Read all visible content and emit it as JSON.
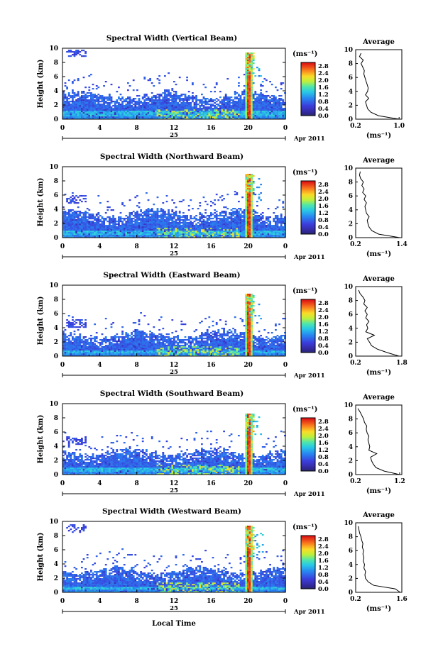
{
  "chart_data": [
    {
      "type": "heatmap",
      "title": "Spectral Width (Vertical Beam)",
      "ylabel": "Height (km)",
      "x_ticks": [
        "0",
        "4",
        "8",
        "12",
        "16",
        "20",
        "0"
      ],
      "y_ticks": [
        "0",
        "2",
        "4",
        "6",
        "8",
        "10"
      ],
      "date_label": "25",
      "month_label": "Apr 2011",
      "colorbar": {
        "unit": "(ms⁻¹)",
        "ticks": [
          "0.0",
          "0.4",
          "0.8",
          "1.2",
          "1.6",
          "2.0",
          "2.4",
          "2.8"
        ],
        "range": [
          0,
          3.0
        ]
      },
      "cloud": {
        "top_base_km": 3.5,
        "bright_base_km": 1.3,
        "spike_hour": 20,
        "spike_top_km": 9.5,
        "upper_patch_km": 9.6
      },
      "average": {
        "title": "Average",
        "xlabel": "(ms⁻¹)",
        "x_ticks": [
          "0.2",
          "1.0"
        ],
        "xlim": [
          0.2,
          1.05
        ],
        "y": [
          0,
          0.5,
          1,
          1.5,
          2,
          2.5,
          3,
          3.5,
          4,
          4.5,
          5,
          5.5,
          6,
          6.5,
          7,
          7.5,
          8,
          8.5,
          9,
          9.5
        ],
        "x": [
          1.0,
          0.62,
          0.48,
          0.42,
          0.4,
          0.38,
          0.44,
          0.38,
          0.42,
          0.43,
          0.41,
          0.39,
          0.37,
          0.35,
          0.36,
          0.33,
          0.3,
          0.34,
          0.27,
          0.3
        ]
      }
    },
    {
      "type": "heatmap",
      "title": "Spectral Width (Northward Beam)",
      "ylabel": "Height (km)",
      "x_ticks": [
        "0",
        "4",
        "8",
        "12",
        "16",
        "20",
        "0"
      ],
      "y_ticks": [
        "0",
        "2",
        "4",
        "6",
        "8",
        "10"
      ],
      "date_label": "25",
      "month_label": "Apr 2011",
      "colorbar": {
        "unit": "(ms⁻¹)",
        "ticks": [
          "0.0",
          "0.4",
          "0.8",
          "1.2",
          "1.6",
          "2.0",
          "2.4",
          "2.8"
        ],
        "range": [
          0,
          3.0
        ]
      },
      "cloud": {
        "top_base_km": 3.6,
        "bright_base_km": 1.2,
        "spike_hour": 20,
        "spike_top_km": 9.2,
        "upper_patch_km": 5.5
      },
      "average": {
        "title": "Average",
        "xlabel": "(ms⁻¹)",
        "x_ticks": [
          "0.2",
          "1.4"
        ],
        "xlim": [
          0.2,
          1.4
        ],
        "y": [
          0,
          0.5,
          1,
          1.5,
          2,
          2.5,
          3,
          3.5,
          4,
          4.5,
          5,
          5.5,
          6,
          6.5,
          7,
          7.5,
          8,
          8.5,
          9,
          9.5
        ],
        "x": [
          1.35,
          0.8,
          0.62,
          0.55,
          0.52,
          0.5,
          0.55,
          0.48,
          0.46,
          0.44,
          0.48,
          0.42,
          0.46,
          0.38,
          0.42,
          0.36,
          0.4,
          0.33,
          0.3,
          0.32
        ]
      }
    },
    {
      "type": "heatmap",
      "title": "Spectral Width (Eastward Beam)",
      "ylabel": "Height (km)",
      "x_ticks": [
        "0",
        "4",
        "8",
        "12",
        "16",
        "20",
        "0"
      ],
      "y_ticks": [
        "0",
        "2",
        "4",
        "6",
        "8",
        "10"
      ],
      "date_label": "25",
      "month_label": "Apr 2011",
      "colorbar": {
        "unit": "(ms⁻¹)",
        "ticks": [
          "0.0",
          "0.4",
          "0.8",
          "1.2",
          "1.6",
          "2.0",
          "2.4",
          "2.8"
        ],
        "range": [
          0,
          3.0
        ]
      },
      "cloud": {
        "top_base_km": 3.2,
        "bright_base_km": 1.0,
        "spike_hour": 20,
        "spike_top_km": 9.0,
        "upper_patch_km": 4.8
      },
      "average": {
        "title": "Average",
        "xlabel": "(ms⁻¹)",
        "x_ticks": [
          "0.2",
          "1.8"
        ],
        "xlim": [
          0.2,
          1.8
        ],
        "y": [
          0,
          0.5,
          1,
          1.5,
          2,
          2.5,
          3,
          3.5,
          4,
          4.5,
          5,
          5.5,
          6,
          6.5,
          7,
          7.5,
          8,
          8.5,
          9,
          9.5
        ],
        "x": [
          1.7,
          1.3,
          0.95,
          0.75,
          0.68,
          0.6,
          0.85,
          0.55,
          0.62,
          0.58,
          0.66,
          0.55,
          0.6,
          0.52,
          0.6,
          0.48,
          0.52,
          0.45,
          0.35,
          0.3
        ]
      }
    },
    {
      "type": "heatmap",
      "title": "Spectral Width (Southward Beam)",
      "ylabel": "Height (km)",
      "x_ticks": [
        "0",
        "4",
        "8",
        "12",
        "16",
        "20",
        "0"
      ],
      "y_ticks": [
        "0",
        "2",
        "4",
        "6",
        "8",
        "10"
      ],
      "date_label": "25",
      "month_label": "Apr 2011",
      "colorbar": {
        "unit": "(ms⁻¹)",
        "ticks": [
          "0.0",
          "0.4",
          "0.8",
          "1.2",
          "1.6",
          "2.0",
          "2.4",
          "2.8"
        ],
        "range": [
          0,
          3.0
        ]
      },
      "cloud": {
        "top_base_km": 3.3,
        "bright_base_km": 1.2,
        "spike_hour": 20,
        "spike_top_km": 8.8,
        "upper_patch_km": 5.0
      },
      "average": {
        "title": "Average",
        "xlabel": "(ms⁻¹)",
        "x_ticks": [
          "0.2",
          "1.2"
        ],
        "xlim": [
          0.2,
          1.25
        ],
        "y": [
          0,
          0.5,
          1,
          1.5,
          2,
          2.5,
          3,
          3.5,
          4,
          4.5,
          5,
          5.5,
          6,
          6.5,
          7,
          7.5,
          8,
          8.5,
          9,
          9.5
        ],
        "x": [
          1.2,
          0.85,
          0.66,
          0.6,
          0.56,
          0.54,
          0.68,
          0.5,
          0.52,
          0.5,
          0.48,
          0.5,
          0.46,
          0.44,
          0.45,
          0.4,
          0.38,
          0.34,
          0.3,
          0.25
        ]
      }
    },
    {
      "type": "heatmap",
      "title": "Spectral Width (Westward Beam)",
      "ylabel": "Height (km)",
      "xlabel": "Local Time",
      "x_ticks": [
        "0",
        "4",
        "8",
        "12",
        "16",
        "20",
        "0"
      ],
      "y_ticks": [
        "0",
        "2",
        "4",
        "6",
        "8",
        "10"
      ],
      "date_label": "25",
      "month_label": "Apr 2011",
      "colorbar": {
        "unit": "(ms⁻¹)",
        "ticks": [
          "0.0",
          "0.4",
          "0.8",
          "1.2",
          "1.6",
          "2.0",
          "2.4",
          "2.8"
        ],
        "range": [
          0,
          3.0
        ]
      },
      "cloud": {
        "top_base_km": 3.2,
        "bright_base_km": 1.0,
        "spike_hour": 20,
        "spike_top_km": 9.6,
        "upper_patch_km": 9.2
      },
      "average": {
        "title": "Average",
        "xlabel": "(ms⁻¹)",
        "x_ticks": [
          "0.2",
          "1.6"
        ],
        "xlim": [
          0.2,
          1.6
        ],
        "y": [
          0,
          0.5,
          1,
          1.5,
          2,
          2.5,
          3,
          3.5,
          4,
          4.5,
          5,
          5.5,
          6,
          6.5,
          7,
          7.5,
          8,
          8.5,
          9,
          9.5
        ],
        "x": [
          1.55,
          1.4,
          0.75,
          0.58,
          0.5,
          0.48,
          0.5,
          0.45,
          0.47,
          0.43,
          0.45,
          0.42,
          0.44,
          0.4,
          0.42,
          0.38,
          0.36,
          0.32,
          0.3,
          0.28
        ]
      }
    }
  ]
}
